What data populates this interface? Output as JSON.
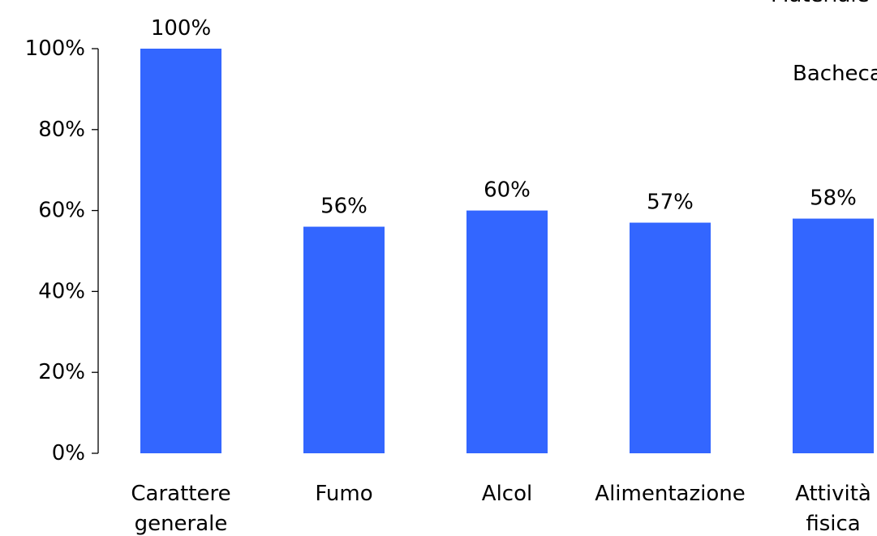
{
  "chart_data": {
    "type": "bar",
    "categories": [
      "Carattere generale",
      "Fumo",
      "Alcol",
      "Alimentazione",
      "Attività fisica"
    ],
    "category_lines": [
      [
        "Carattere",
        "generale"
      ],
      [
        "Fumo"
      ],
      [
        "Alcol"
      ],
      [
        "Alimentazione"
      ],
      [
        "Attività",
        "fisica"
      ]
    ],
    "values": [
      100,
      56,
      60,
      57,
      58
    ],
    "data_labels": [
      "100%",
      "56%",
      "60%",
      "57%",
      "58%"
    ],
    "ylim": [
      0,
      100
    ],
    "yticks": [
      0,
      20,
      40,
      60,
      80,
      100
    ],
    "ytick_labels": [
      "0%",
      "20%",
      "40%",
      "60%",
      "80%",
      "100%"
    ],
    "bar_color": "#3366FF",
    "grid": false,
    "legend_entries": [
      "Materiale",
      "Bacheca"
    ]
  }
}
